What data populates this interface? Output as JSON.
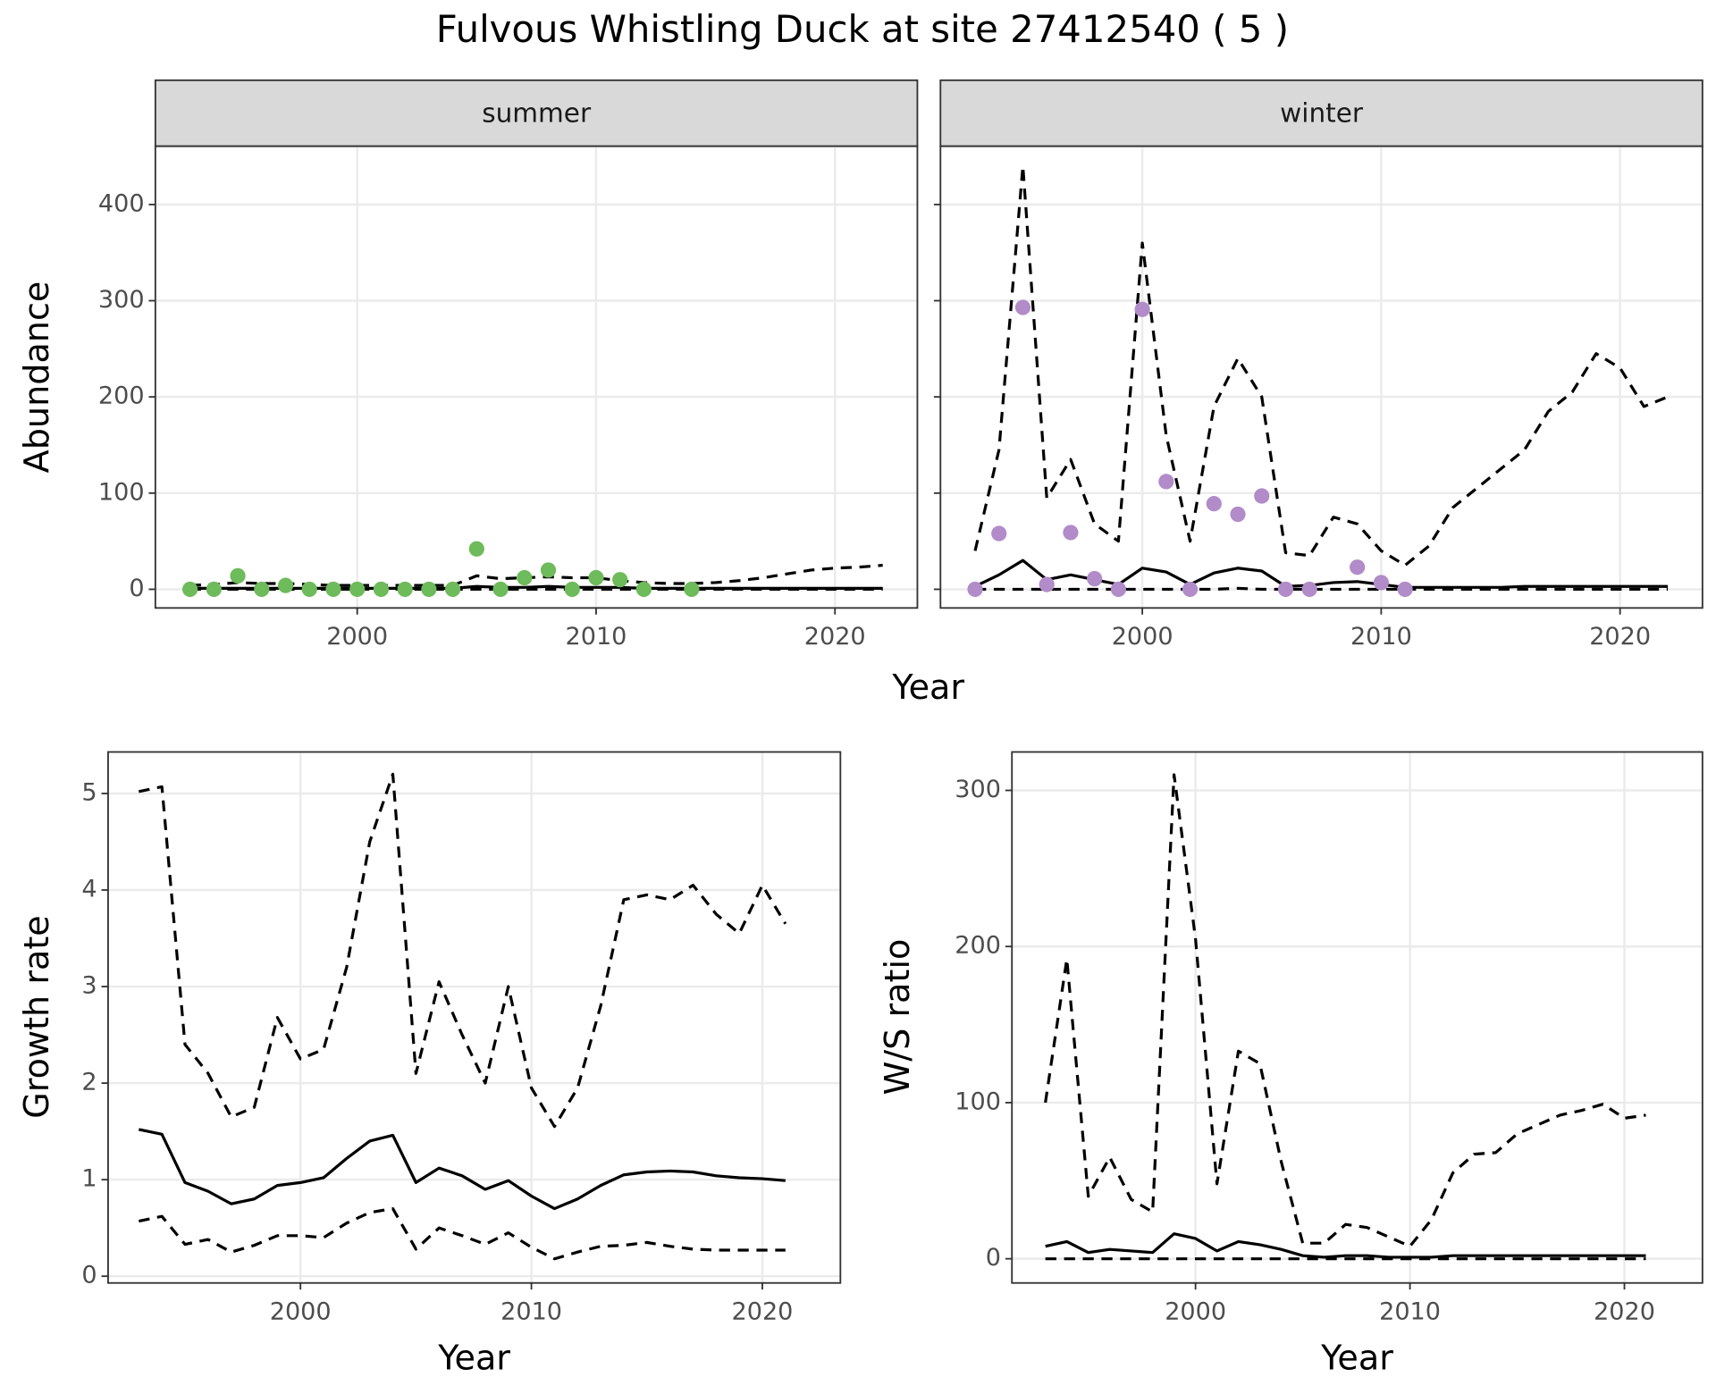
{
  "title": "Fulvous Whistling Duck at site 27412540 ( 5 )",
  "chart_data": [
    {
      "type": "line",
      "facet_title": "summer",
      "y_label": "Abundance",
      "x_label": "Year",
      "x": [
        1993,
        1994,
        1995,
        1996,
        1997,
        1998,
        1999,
        2000,
        2001,
        2002,
        2003,
        2004,
        2005,
        2006,
        2007,
        2008,
        2009,
        2010,
        2011,
        2012,
        2013,
        2014,
        2015,
        2016,
        2017,
        2018,
        2019,
        2020,
        2021,
        2022
      ],
      "xlim": [
        1991.55,
        2023.45
      ],
      "xticks": [
        2000,
        2010,
        2020
      ],
      "ylim": [
        -19.4,
        460.6
      ],
      "yticks": [
        0,
        100,
        200,
        300,
        400
      ],
      "grid": true,
      "series": [
        {
          "style": "dashed",
          "color": "#000000",
          "values": [
            4,
            5,
            7,
            6,
            6,
            5,
            4,
            4,
            4,
            4,
            4,
            4,
            14,
            11,
            12,
            13,
            12,
            12,
            9,
            7,
            6,
            6,
            7,
            9,
            12,
            16,
            20,
            22,
            23,
            25
          ]
        },
        {
          "style": "solid",
          "color": "#000000",
          "values": [
            1,
            1,
            1,
            1,
            1,
            1,
            1,
            1,
            1,
            1,
            1,
            1,
            3,
            2,
            2,
            3,
            2,
            2,
            2,
            1,
            1,
            1,
            1,
            1,
            1,
            1,
            1,
            1,
            1,
            1
          ]
        },
        {
          "style": "dashed",
          "color": "#000000",
          "values": [
            0,
            0,
            0,
            0,
            0,
            0,
            0,
            0,
            0,
            0,
            0,
            0,
            0,
            0,
            0,
            0,
            0,
            0,
            0,
            0,
            0,
            0,
            0,
            0,
            0,
            0,
            0,
            0,
            0,
            0
          ]
        },
        {
          "style": "point",
          "color": "#6dbb5a",
          "values": [
            0,
            0,
            14,
            0,
            4,
            0,
            0,
            0,
            0,
            0,
            0,
            0,
            42,
            0,
            12,
            20,
            0,
            12,
            10,
            0,
            null,
            0,
            null,
            null,
            null,
            null,
            null,
            null,
            null,
            null
          ]
        }
      ]
    },
    {
      "type": "line",
      "facet_title": "winter",
      "x": [
        1993,
        1994,
        1995,
        1996,
        1997,
        1998,
        1999,
        2000,
        2001,
        2002,
        2003,
        2004,
        2005,
        2006,
        2007,
        2008,
        2009,
        2010,
        2011,
        2012,
        2013,
        2014,
        2015,
        2016,
        2017,
        2018,
        2019,
        2020,
        2021,
        2022
      ],
      "xlim": [
        1991.55,
        2023.45
      ],
      "xticks": [
        2000,
        2010,
        2020
      ],
      "grid": true,
      "series": [
        {
          "style": "dashed",
          "color": "#000000",
          "values": [
            40,
            145,
            440,
            95,
            135,
            68,
            50,
            360,
            160,
            50,
            190,
            240,
            200,
            38,
            35,
            75,
            68,
            40,
            25,
            45,
            85,
            105,
            125,
            145,
            185,
            205,
            245,
            230,
            190,
            200
          ]
        },
        {
          "style": "solid",
          "color": "#000000",
          "values": [
            3,
            15,
            30,
            10,
            15,
            10,
            5,
            22,
            18,
            5,
            17,
            22,
            19,
            3,
            4,
            7,
            8,
            5,
            2,
            2,
            2,
            2,
            2,
            3,
            3,
            3,
            3,
            3,
            3,
            3
          ]
        },
        {
          "style": "dashed",
          "color": "#000000",
          "values": [
            0,
            0,
            0,
            0,
            0,
            0,
            0,
            0,
            0,
            0,
            0,
            1,
            0,
            0,
            0,
            0,
            0,
            0,
            0,
            0,
            0,
            0,
            0,
            0,
            0,
            0,
            0,
            0,
            0,
            0
          ]
        },
        {
          "style": "point",
          "color": "#b28bc9",
          "values": [
            0,
            58,
            293,
            5,
            59,
            11,
            0,
            291,
            112,
            0,
            89,
            78,
            97,
            0,
            0,
            null,
            23,
            7,
            0,
            null,
            null,
            null,
            null,
            null,
            null,
            null,
            null,
            null,
            null,
            null
          ]
        }
      ]
    },
    {
      "type": "line",
      "y_label": "Growth rate",
      "x_label": "Year",
      "x": [
        1993,
        1994,
        1995,
        1996,
        1997,
        1998,
        1999,
        2000,
        2001,
        2002,
        2003,
        2004,
        2005,
        2006,
        2007,
        2008,
        2009,
        2010,
        2011,
        2012,
        2013,
        2014,
        2015,
        2016,
        2017,
        2018,
        2019,
        2020,
        2021
      ],
      "xlim": [
        1991.67,
        2023.38
      ],
      "xticks": [
        2000,
        2010,
        2020
      ],
      "ylim": [
        -0.07,
        5.43
      ],
      "yticks": [
        0,
        1,
        2,
        3,
        4,
        5
      ],
      "grid": true,
      "series": [
        {
          "style": "dashed",
          "color": "#000000",
          "values": [
            5.02,
            5.07,
            2.4,
            2.1,
            1.65,
            1.75,
            2.68,
            2.25,
            2.35,
            3.2,
            4.5,
            5.2,
            2.1,
            3.05,
            2.5,
            2.0,
            3.0,
            1.95,
            1.55,
            1.95,
            2.8,
            3.9,
            3.95,
            3.9,
            4.05,
            3.75,
            3.55,
            4.05,
            3.65
          ]
        },
        {
          "style": "solid",
          "color": "#000000",
          "values": [
            1.52,
            1.47,
            0.97,
            0.88,
            0.75,
            0.8,
            0.94,
            0.97,
            1.02,
            1.22,
            1.4,
            1.46,
            0.97,
            1.12,
            1.04,
            0.9,
            0.99,
            0.83,
            0.7,
            0.8,
            0.94,
            1.05,
            1.08,
            1.09,
            1.08,
            1.04,
            1.02,
            1.01,
            0.99
          ]
        },
        {
          "style": "dashed",
          "color": "#000000",
          "values": [
            0.57,
            0.62,
            0.33,
            0.38,
            0.25,
            0.32,
            0.42,
            0.42,
            0.4,
            0.55,
            0.66,
            0.7,
            0.28,
            0.5,
            0.42,
            0.33,
            0.45,
            0.3,
            0.18,
            0.25,
            0.31,
            0.32,
            0.35,
            0.31,
            0.28,
            0.27,
            0.27,
            0.27,
            0.27
          ]
        }
      ]
    },
    {
      "type": "line",
      "y_label": "W/S ratio",
      "x_label": "Year",
      "x": [
        1993,
        1994,
        1995,
        1996,
        1997,
        1998,
        1999,
        2000,
        2001,
        2002,
        2003,
        2004,
        2005,
        2006,
        2007,
        2008,
        2009,
        2010,
        2011,
        2012,
        2013,
        2014,
        2015,
        2016,
        2017,
        2018,
        2019,
        2020,
        2021
      ],
      "xlim": [
        1991.44,
        2023.64
      ],
      "xticks": [
        2000,
        2010,
        2020
      ],
      "ylim": [
        -15.5,
        324.6
      ],
      "yticks": [
        0,
        100,
        200,
        300
      ],
      "grid": true,
      "series": [
        {
          "style": "dashed",
          "color": "#000000",
          "values": [
            100,
            192,
            40,
            65,
            38,
            30,
            310,
            205,
            48,
            133,
            125,
            62,
            10,
            10,
            22,
            20,
            14,
            8,
            25,
            55,
            67,
            68,
            80,
            86,
            92,
            95,
            99,
            90,
            92
          ]
        },
        {
          "style": "solid",
          "color": "#000000",
          "values": [
            8,
            11,
            4,
            6,
            5,
            4,
            16,
            13,
            5,
            11,
            9,
            6,
            2,
            1,
            2,
            2,
            1,
            1,
            1,
            2,
            2,
            2,
            2,
            2,
            2,
            2,
            2,
            2,
            2
          ]
        },
        {
          "style": "dashed",
          "color": "#000000",
          "values": [
            0,
            0,
            0,
            0,
            0,
            0,
            0,
            0,
            0,
            0,
            0,
            0,
            0,
            0,
            0,
            0,
            0,
            0,
            0,
            0,
            0,
            0,
            0,
            0,
            0,
            0,
            0,
            0,
            0
          ]
        }
      ]
    }
  ]
}
